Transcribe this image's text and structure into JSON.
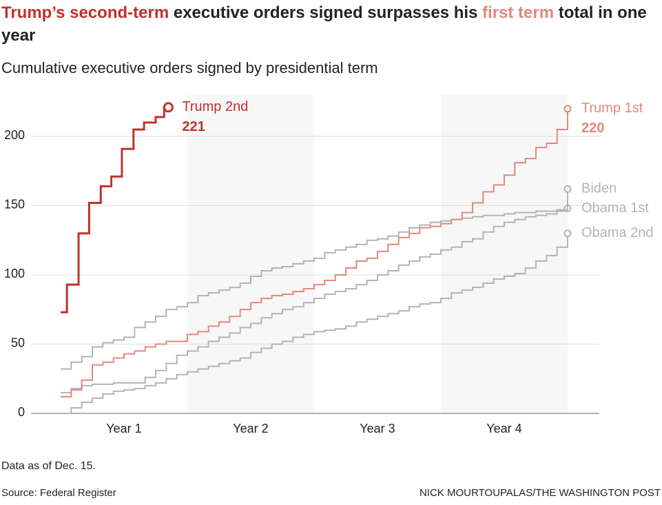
{
  "chart_data": {
    "type": "step-line",
    "title": [
      "Trump’s second-term",
      " executive orders signed surpasses his ",
      "first term",
      " total in one year"
    ],
    "title_colors": [
      "#c0312c",
      "#222222",
      "#e4877c",
      "#222222"
    ],
    "subtitle": "Cumulative executive orders signed by presidential term",
    "x": [
      0,
      1,
      2,
      3,
      4,
      5,
      6,
      7,
      8,
      9,
      10,
      11,
      12,
      13,
      14,
      15,
      16,
      17,
      18,
      19,
      20,
      21,
      22,
      23,
      24,
      25,
      26,
      27,
      28,
      29,
      30,
      31,
      32,
      33,
      34,
      35,
      36,
      37,
      38,
      39,
      40,
      41,
      42,
      43,
      44,
      45,
      46,
      47,
      48
    ],
    "xlim": [
      0,
      48
    ],
    "xticks": [
      {
        "value": 6,
        "label": "Year 1"
      },
      {
        "value": 18,
        "label": "Year 2"
      },
      {
        "value": 30,
        "label": "Year 3"
      },
      {
        "value": 42,
        "label": "Year 4"
      }
    ],
    "ylim": [
      0,
      230
    ],
    "yticks": [
      0,
      50,
      100,
      150,
      200
    ],
    "grid": true,
    "series": [
      {
        "name": "Obama 2nd",
        "color": "#b3b3b3",
        "values": [
          0,
          4,
          8,
          11,
          14,
          16,
          17,
          18,
          20,
          22,
          25,
          28,
          30,
          32,
          34,
          36,
          38,
          40,
          44,
          47,
          50,
          52,
          55,
          57,
          59,
          60,
          61,
          63,
          66,
          68,
          70,
          72,
          74,
          77,
          79,
          80,
          83,
          87,
          89,
          91,
          94,
          97,
          99,
          101,
          105,
          110,
          114,
          120,
          130
        ]
      },
      {
        "name": "Obama 1st",
        "color": "#b3b3b3",
        "values": [
          15,
          18,
          20,
          21,
          21,
          22,
          22,
          22,
          26,
          31,
          36,
          42,
          45,
          48,
          52,
          55,
          58,
          62,
          65,
          69,
          72,
          75,
          77,
          80,
          83,
          86,
          88,
          90,
          93,
          96,
          100,
          103,
          107,
          110,
          113,
          115,
          118,
          120,
          124,
          126,
          131,
          135,
          138,
          140,
          142,
          143,
          144,
          146,
          148
        ]
      },
      {
        "name": "Biden",
        "color": "#b3b3b3",
        "values": [
          32,
          37,
          41,
          48,
          51,
          53,
          55,
          62,
          66,
          70,
          75,
          77,
          80,
          85,
          87,
          89,
          91,
          94,
          99,
          103,
          105,
          106,
          108,
          110,
          112,
          116,
          118,
          120,
          122,
          125,
          126,
          128,
          131,
          134,
          136,
          138,
          139,
          140,
          141,
          142,
          143,
          143,
          144,
          145,
          145,
          146,
          146,
          147,
          162
        ]
      },
      {
        "name": "Trump 1st",
        "color": "#e4877c",
        "label_value": true,
        "values": [
          12,
          17,
          24,
          35,
          37,
          40,
          43,
          45,
          48,
          50,
          52,
          52,
          57,
          59,
          63,
          66,
          70,
          75,
          80,
          83,
          85,
          86,
          88,
          90,
          93,
          96,
          100,
          105,
          110,
          112,
          117,
          122,
          127,
          130,
          134,
          135,
          137,
          140,
          145,
          152,
          160,
          165,
          172,
          181,
          184,
          192,
          195,
          205,
          220
        ]
      },
      {
        "name": "Trump 2nd",
        "color": "#c0312c",
        "label_value": true,
        "x": [
          0,
          0.6,
          1.7,
          2.7,
          3.8,
          4.8,
          5.8,
          6.9,
          7.9,
          9.0,
          9.8,
          10.2
        ],
        "values": [
          73,
          93,
          130,
          152,
          164,
          171,
          191,
          205,
          210,
          214,
          221,
          221
        ]
      }
    ],
    "notes": [
      "Data as of Dec. 15.",
      "Source: Federal Register"
    ],
    "credit": "NICK MOURTOUPALAS/THE WASHINGTON POST"
  }
}
